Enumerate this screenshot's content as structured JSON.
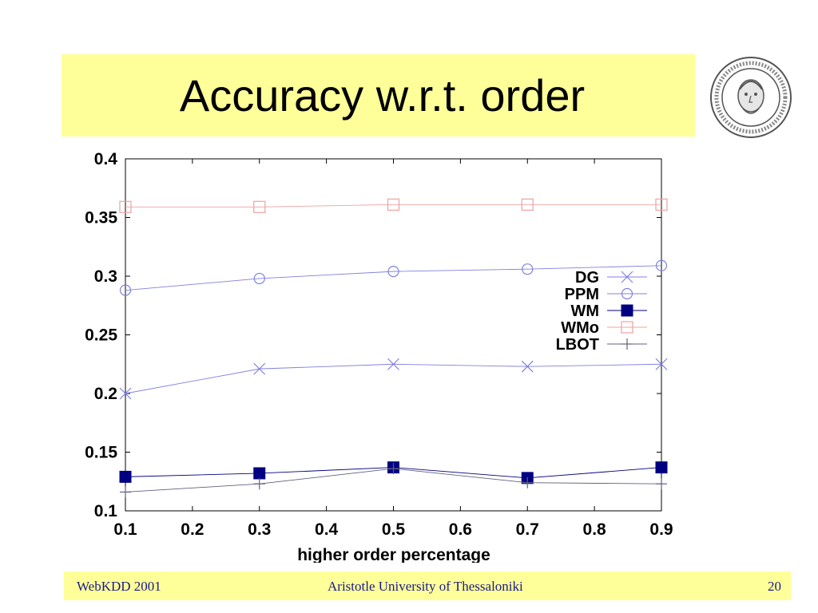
{
  "slide": {
    "title": "Accuracy w.r.t. order",
    "footer_left": "WebKDD 2001",
    "footer_center": "Aristotle University of Thessaloniki",
    "page_number": "20"
  },
  "logo": {
    "icon": "university-seal-icon"
  },
  "colors": {
    "band": "#ffff99",
    "footer_text": "#1a1a8c"
  },
  "chart_data": {
    "type": "line",
    "title": "",
    "xlabel": "higher order percentage",
    "ylabel": "",
    "x": [
      0.1,
      0.3,
      0.5,
      0.7,
      0.9
    ],
    "xlim": [
      0.1,
      0.9
    ],
    "ylim": [
      0.1,
      0.4
    ],
    "xticks": [
      "0.1",
      "0.2",
      "0.3",
      "0.4",
      "0.5",
      "0.6",
      "0.7",
      "0.8",
      "0.9"
    ],
    "yticks": [
      "0.1",
      "0.15",
      "0.2",
      "0.25",
      "0.3",
      "0.35",
      "0.4"
    ],
    "legend_position": "right",
    "series": [
      {
        "name": "DG",
        "marker": "x",
        "color": "#8080e0",
        "values": [
          0.2,
          0.221,
          0.225,
          0.223,
          0.225
        ]
      },
      {
        "name": "PPM",
        "marker": "circle",
        "color": "#8080e0",
        "values": [
          0.288,
          0.298,
          0.304,
          0.306,
          0.309
        ]
      },
      {
        "name": "WM",
        "marker": "filled-square",
        "color": "#000080",
        "values": [
          0.129,
          0.132,
          0.137,
          0.128,
          0.137
        ]
      },
      {
        "name": "WMo",
        "marker": "square",
        "color": "#f0a0a0",
        "values": [
          0.359,
          0.359,
          0.361,
          0.361,
          0.361
        ]
      },
      {
        "name": "LBOT",
        "marker": "plus",
        "color": "#606080",
        "values": [
          0.116,
          0.123,
          0.136,
          0.124,
          0.123
        ]
      }
    ]
  }
}
